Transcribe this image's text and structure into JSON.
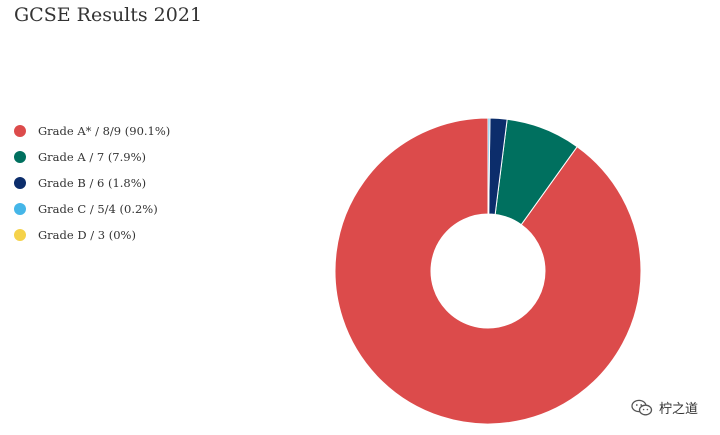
{
  "chart_data": {
    "type": "pie",
    "title": "GCSE Results 2021",
    "legend_position": "left",
    "slices": [
      {
        "label": "Grade A* / 8/9 (90.1%)",
        "value": 90.1,
        "color": "#dc4b4b"
      },
      {
        "label": "Grade A / 7 (7.9%)",
        "value": 7.9,
        "color": "#00705f"
      },
      {
        "label": "Grade B / 6 (1.8%)",
        "value": 1.8,
        "color": "#0c2d6b"
      },
      {
        "label": "Grade C / 5/4 (0.2%)",
        "value": 0.2,
        "color": "#45b6e8"
      },
      {
        "label": "Grade D / 3 (0%)",
        "value": 0,
        "color": "#f5d24a"
      }
    ]
  },
  "watermark": {
    "text": "柠之道",
    "icon": "wechat-icon"
  }
}
